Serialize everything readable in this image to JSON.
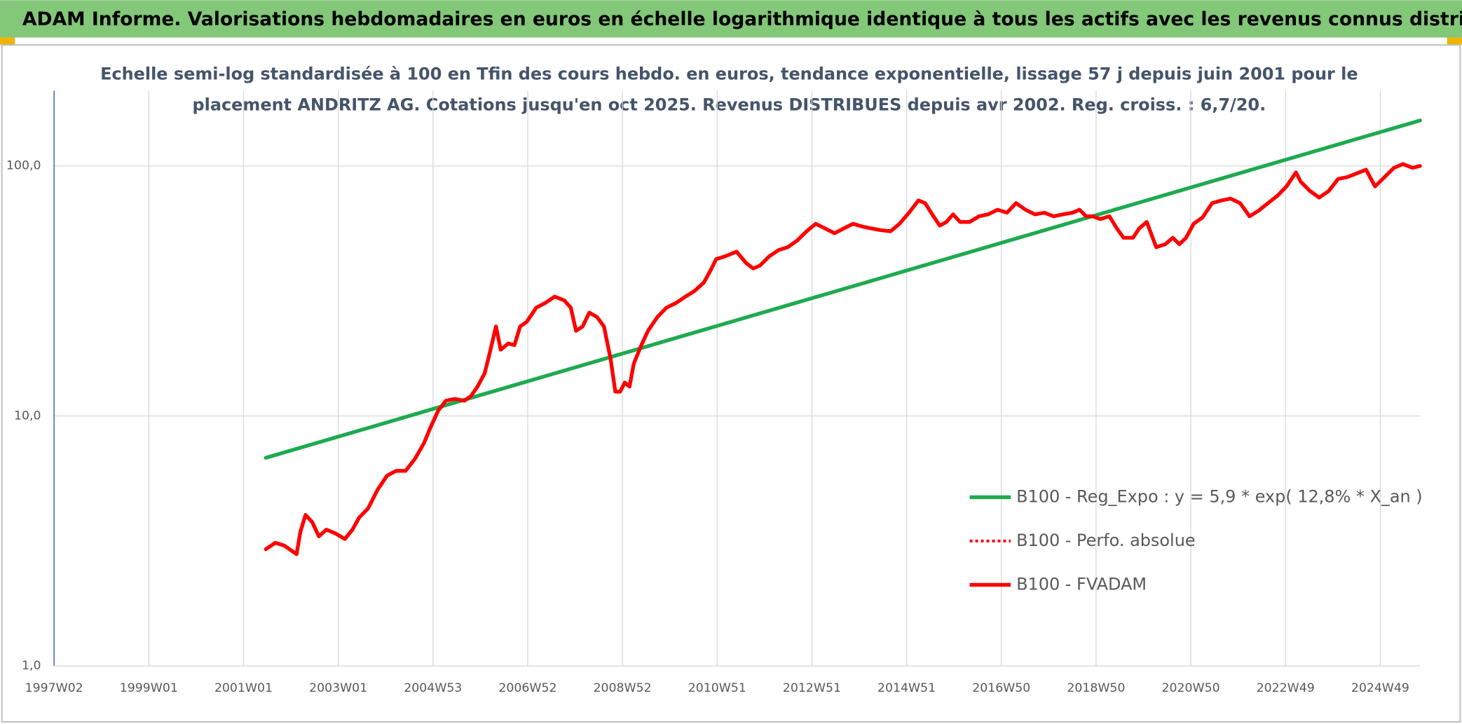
{
  "chart_data": {
    "type": "line",
    "title": "ADAM Informe. Valorisations hebdomadaires en euros en échelle logarithmique identique à tous les actifs avec les revenus connus distribués",
    "subtitle": [
      "Echelle semi-log standardisée à 100 en Tfin des cours hebdo. en euros, tendance exponentielle, lissage 57 j depuis juin 2001 pour le",
      "placement ANDRITZ AG. Cotations jusqu'en oct 2025. Revenus DISTRIBUES depuis avr 2002. Reg. croiss. : 6,7/20."
    ],
    "log_y": true,
    "grid": true,
    "xlim": [
      1997.0,
      2025.84
    ],
    "xticks": [
      {
        "value": 1997.0,
        "label": "1997W02"
      },
      {
        "value": 1999.0,
        "label": "1999W01"
      },
      {
        "value": 2001.0,
        "label": "2001W01"
      },
      {
        "value": 2003.0,
        "label": "2003W01"
      },
      {
        "value": 2005.0,
        "label": "2004W53"
      },
      {
        "value": 2007.0,
        "label": "2006W52"
      },
      {
        "value": 2009.0,
        "label": "2008W52"
      },
      {
        "value": 2011.0,
        "label": "2010W51"
      },
      {
        "value": 2013.0,
        "label": "2012W51"
      },
      {
        "value": 2015.0,
        "label": "2014W51"
      },
      {
        "value": 2017.0,
        "label": "2016W50"
      },
      {
        "value": 2019.0,
        "label": "2018W50"
      },
      {
        "value": 2021.0,
        "label": "2020W50"
      },
      {
        "value": 2023.0,
        "label": "2022W49"
      },
      {
        "value": 2025.0,
        "label": "2024W49"
      }
    ],
    "ylim": [
      1,
      200
    ],
    "yticks": [
      {
        "value": 1,
        "label": "1,0"
      },
      {
        "value": 10,
        "label": "10,0"
      },
      {
        "value": 100,
        "label": "100,0"
      }
    ],
    "x": [
      2001.47,
      2001.67,
      2001.86,
      2002.12,
      2002.2,
      2002.31,
      2002.45,
      2002.59,
      2002.75,
      2002.94,
      2003.14,
      2003.3,
      2003.44,
      2003.63,
      2003.83,
      2004.03,
      2004.22,
      2004.42,
      2004.62,
      2004.81,
      2004.95,
      2005.11,
      2005.27,
      2005.46,
      2005.66,
      2005.8,
      2005.94,
      2006.09,
      2006.19,
      2006.33,
      2006.43,
      2006.59,
      2006.72,
      2006.84,
      2006.98,
      2007.18,
      2007.37,
      2007.57,
      2007.77,
      2007.91,
      2008.02,
      2008.16,
      2008.3,
      2008.46,
      2008.61,
      2008.75,
      2008.85,
      2008.95,
      2009.05,
      2009.15,
      2009.24,
      2009.4,
      2009.54,
      2009.74,
      2009.93,
      2010.13,
      2010.33,
      2010.52,
      2010.72,
      2010.86,
      2010.98,
      2011.17,
      2011.41,
      2011.61,
      2011.76,
      2011.9,
      2012.1,
      2012.3,
      2012.49,
      2012.69,
      2012.89,
      2013.08,
      2013.28,
      2013.48,
      2013.67,
      2013.87,
      2014.07,
      2014.26,
      2014.46,
      2014.66,
      2014.85,
      2015.05,
      2015.25,
      2015.39,
      2015.54,
      2015.7,
      2015.84,
      2015.98,
      2016.13,
      2016.33,
      2016.53,
      2016.72,
      2016.92,
      2017.12,
      2017.31,
      2017.51,
      2017.71,
      2017.91,
      2018.1,
      2018.3,
      2018.5,
      2018.65,
      2018.79,
      2018.93,
      2019.09,
      2019.28,
      2019.44,
      2019.58,
      2019.78,
      2019.91,
      2020.07,
      2020.27,
      2020.46,
      2020.62,
      2020.76,
      2020.9,
      2021.06,
      2021.25,
      2021.45,
      2021.65,
      2021.84,
      2022.04,
      2022.24,
      2022.43,
      2022.63,
      2022.83,
      2023.02,
      2023.22,
      2023.32,
      2023.52,
      2023.71,
      2023.91,
      2024.11,
      2024.3,
      2024.5,
      2024.7,
      2024.89,
      2025.09,
      2025.29,
      2025.48,
      2025.68,
      2025.84
    ],
    "series": [
      {
        "name": "B100 - Reg_Expo : y = 5,9 * exp( 12,8% *  X_an )",
        "color": "#1faa4f",
        "style": "solid",
        "x": [
          2001.47,
          2025.84
        ],
        "values": [
          6.8,
          152
        ]
      },
      {
        "name": "B100 - Perfo. absolue",
        "color": "#ff0000",
        "style": "dotted",
        "values": [
          2.93,
          3.11,
          3.03,
          2.8,
          3.44,
          4.02,
          3.76,
          3.3,
          3.51,
          3.39,
          3.22,
          3.51,
          3.92,
          4.27,
          5.07,
          5.77,
          6.03,
          6.03,
          6.74,
          7.79,
          9.02,
          10.5,
          11.5,
          11.7,
          11.5,
          12.0,
          13.1,
          14.8,
          17.6,
          22.8,
          18.4,
          19.5,
          19.2,
          22.8,
          23.8,
          27.1,
          28.3,
          30.0,
          29.0,
          27.1,
          21.9,
          22.8,
          25.9,
          24.9,
          22.8,
          16.9,
          12.5,
          12.5,
          13.6,
          13.1,
          16.2,
          19.2,
          21.9,
          24.9,
          27.1,
          28.3,
          30.0,
          31.6,
          34.2,
          38.2,
          42.4,
          43.5,
          45.4,
          40.9,
          38.9,
          39.9,
          43.5,
          46.1,
          47.3,
          50.3,
          54.8,
          58.7,
          56.2,
          53.8,
          56.2,
          58.7,
          57.2,
          56.2,
          55.3,
          54.8,
          58.7,
          65.0,
          72.8,
          71.0,
          64.0,
          57.7,
          59.7,
          64.0,
          59.7,
          59.7,
          62.9,
          64.0,
          66.8,
          65.0,
          71.0,
          66.8,
          64.0,
          65.0,
          62.9,
          64.0,
          65.0,
          66.8,
          62.9,
          62.9,
          61.3,
          62.9,
          56.2,
          51.6,
          51.6,
          56.2,
          59.7,
          47.3,
          48.6,
          51.6,
          48.6,
          51.6,
          58.7,
          62.3,
          71.0,
          72.8,
          74.0,
          71.0,
          62.9,
          66.2,
          71.0,
          76.0,
          82.8,
          94.2,
          86.5,
          79.3,
          74.7,
          79.3,
          88.7,
          90.2,
          93.3,
          96.6,
          82.8,
          90.2,
          98.3,
          101.7,
          98.3,
          100
        ]
      },
      {
        "name": "B100 - FVADAM",
        "color": "#ff0000",
        "style": "solid",
        "values": [
          2.93,
          3.11,
          3.03,
          2.8,
          3.44,
          4.02,
          3.76,
          3.3,
          3.51,
          3.39,
          3.22,
          3.51,
          3.92,
          4.27,
          5.07,
          5.77,
          6.03,
          6.03,
          6.74,
          7.79,
          9.02,
          10.5,
          11.5,
          11.7,
          11.5,
          12.0,
          13.1,
          14.8,
          17.6,
          22.8,
          18.4,
          19.5,
          19.2,
          22.8,
          23.8,
          27.1,
          28.3,
          30.0,
          29.0,
          27.1,
          21.9,
          22.8,
          25.9,
          24.9,
          22.8,
          16.9,
          12.5,
          12.5,
          13.6,
          13.1,
          16.2,
          19.2,
          21.9,
          24.9,
          27.1,
          28.3,
          30.0,
          31.6,
          34.2,
          38.2,
          42.4,
          43.5,
          45.4,
          40.9,
          38.9,
          39.9,
          43.5,
          46.1,
          47.3,
          50.3,
          54.8,
          58.7,
          56.2,
          53.8,
          56.2,
          58.7,
          57.2,
          56.2,
          55.3,
          54.8,
          58.7,
          65.0,
          72.8,
          71.0,
          64.0,
          57.7,
          59.7,
          64.0,
          59.7,
          59.7,
          62.9,
          64.0,
          66.8,
          65.0,
          71.0,
          66.8,
          64.0,
          65.0,
          62.9,
          64.0,
          65.0,
          66.8,
          62.9,
          62.9,
          61.3,
          62.9,
          56.2,
          51.6,
          51.6,
          56.2,
          59.7,
          47.3,
          48.6,
          51.6,
          48.6,
          51.6,
          58.7,
          62.3,
          71.0,
          72.8,
          74.0,
          71.0,
          62.9,
          66.2,
          71.0,
          76.0,
          82.8,
          94.2,
          86.5,
          79.3,
          74.7,
          79.3,
          88.7,
          90.2,
          93.3,
          96.6,
          82.8,
          90.2,
          98.3,
          101.7,
          98.3,
          100
        ]
      }
    ]
  }
}
